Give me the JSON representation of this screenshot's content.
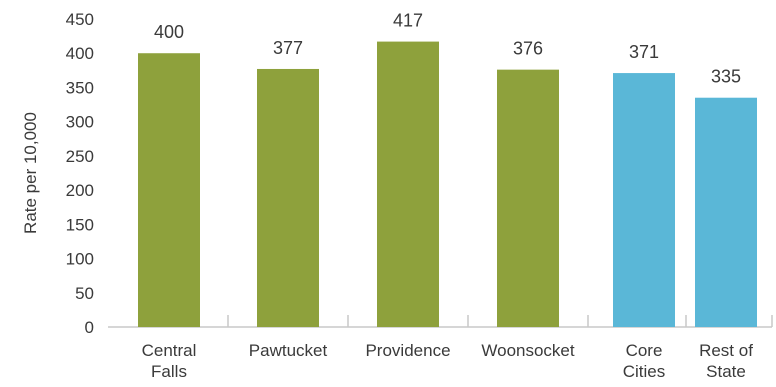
{
  "chart_data": {
    "type": "bar",
    "title": "",
    "xlabel": "",
    "ylabel": "Rate per 10,000",
    "ylim": [
      0,
      450
    ],
    "yticks": [
      0,
      50,
      100,
      150,
      200,
      250,
      300,
      350,
      400,
      450
    ],
    "grid": false,
    "legend": "none",
    "categories": [
      [
        "Central",
        "Falls"
      ],
      [
        "Pawtucket"
      ],
      [
        "Providence"
      ],
      [
        "Woonsocket"
      ],
      [
        "Core",
        "Cities"
      ],
      [
        "Rest of",
        "State"
      ]
    ],
    "values": [
      400,
      377,
      417,
      376,
      371,
      335
    ],
    "data_labels": [
      "400",
      "377",
      "417",
      "376",
      "371",
      "335"
    ],
    "bar_colors": [
      "#8ea13c",
      "#8ea13c",
      "#8ea13c",
      "#8ea13c",
      "#5ab7d7",
      "#5ab7d7"
    ],
    "axis_color": "#c8c8c8"
  }
}
